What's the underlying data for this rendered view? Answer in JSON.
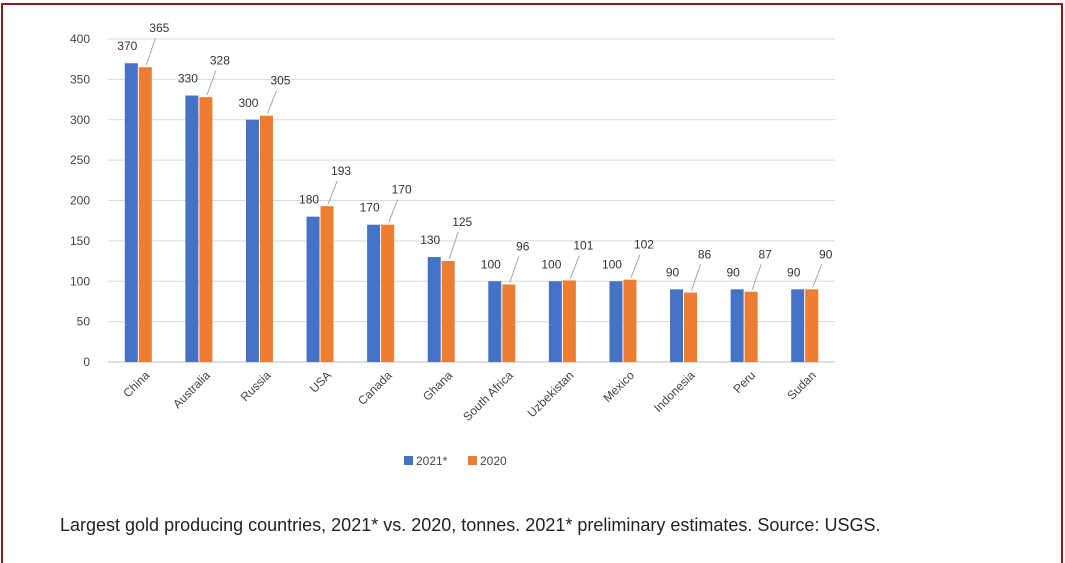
{
  "chart_data": {
    "type": "bar",
    "categories": [
      "China",
      "Australia",
      "Russia",
      "USA",
      "Canada",
      "Ghana",
      "South Africa",
      "Uzbekistan",
      "Mexico",
      "Indonesia",
      "Peru",
      "Sudan"
    ],
    "series": [
      {
        "name": "2021*",
        "color": "#4472c4",
        "values": [
          370,
          330,
          300,
          180,
          170,
          130,
          100,
          100,
          100,
          90,
          90,
          90
        ]
      },
      {
        "name": "2020",
        "color": "#ed7d31",
        "values": [
          365,
          328,
          305,
          193,
          170,
          125,
          96,
          101,
          102,
          86,
          87,
          90
        ]
      }
    ],
    "yticks": [
      0,
      50,
      100,
      150,
      200,
      250,
      300,
      350,
      400
    ],
    "ylim": [
      0,
      400
    ],
    "grid": true,
    "legend_position": "bottom",
    "title": "",
    "xlabel": "",
    "ylabel": ""
  },
  "caption": "Largest gold producing countries, 2021* vs. 2020, tonnes. 2021* preliminary estimates. Source: USGS."
}
